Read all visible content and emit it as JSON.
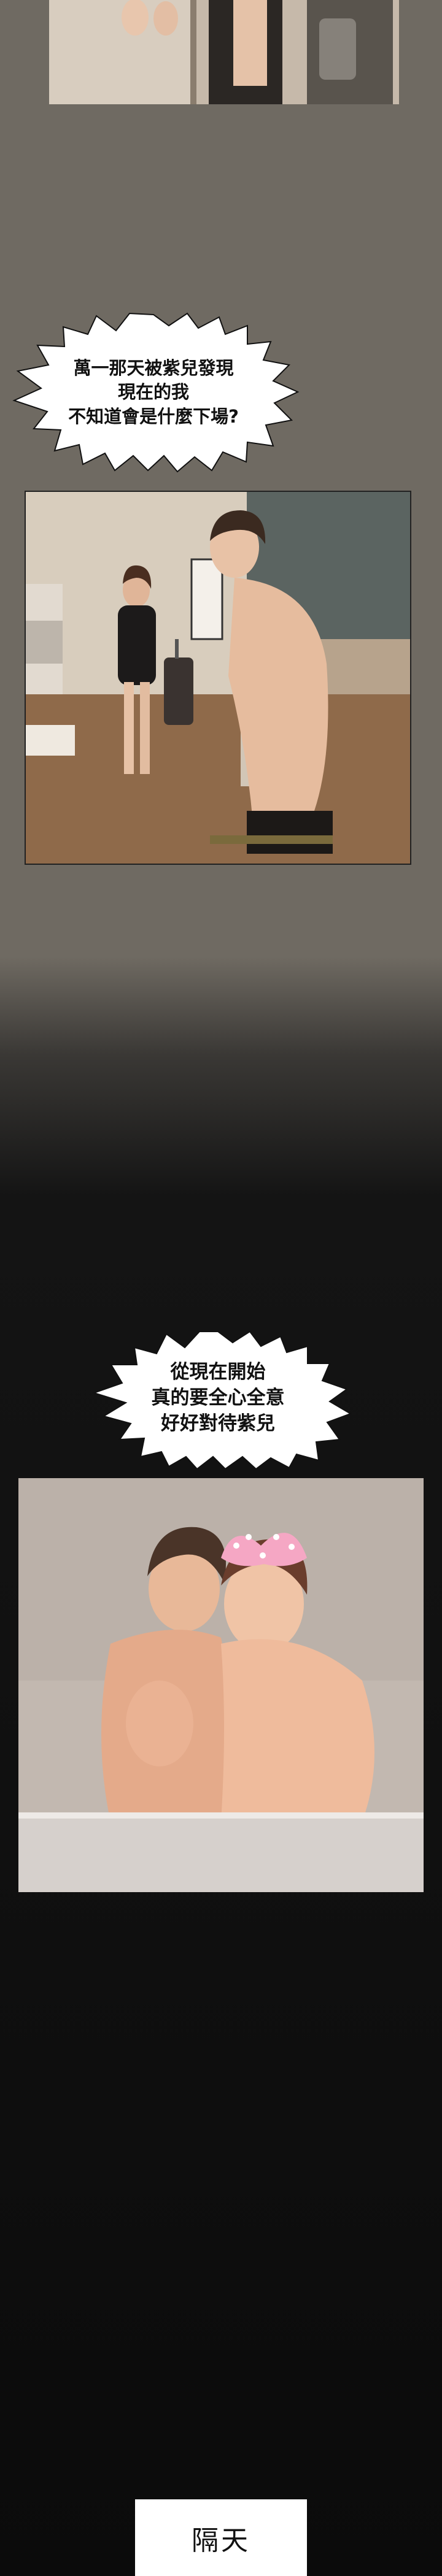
{
  "bubble_1": {
    "text": "萬一那天被紫兒發現\n現在的我\n不知道會是什麼下場?"
  },
  "bubble_2": {
    "text": "從現在開始\n真的要全心全意\n好好對待紫兒"
  },
  "caption": {
    "text": "隔天"
  }
}
